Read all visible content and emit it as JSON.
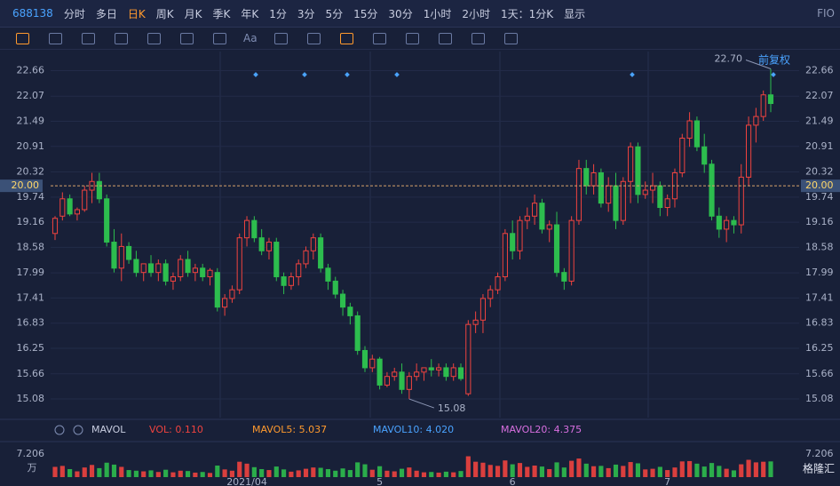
{
  "header": {
    "code": "688138",
    "tabs": [
      "分时",
      "多日",
      "日K",
      "周K",
      "月K",
      "季K",
      "年K",
      "1分",
      "3分",
      "5分",
      "15分",
      "30分",
      "1小时",
      "2小时",
      "1天：1分K",
      "显示"
    ],
    "active_tab": 2,
    "right": "FIO"
  },
  "toolbar": {
    "text_tool": "Aa",
    "adjust": "前复权"
  },
  "indicator": {
    "name": "MAVOL",
    "vol": "VOL: 0.110",
    "ma5": "MAVOL5: 5.037",
    "ma10": "MAVOL10: 4.020",
    "ma20": "MAVOL20: 4.375"
  },
  "logo": "格隆汇",
  "chart_data": {
    "type": "candlestick",
    "ylim": [
      14.65,
      23.1
    ],
    "yticks": [
      22.66,
      22.07,
      21.49,
      20.91,
      20.32,
      19.74,
      19.16,
      18.58,
      17.99,
      17.41,
      16.83,
      16.25,
      15.66,
      15.08
    ],
    "current": {
      "value": 20,
      "label": "20.00"
    },
    "high_label": {
      "value": 22.7,
      "label": "22.70"
    },
    "low_label": {
      "value": 15.08,
      "label": "15.08"
    },
    "vlim": [
      0,
      7.206
    ],
    "vticks": [
      7.206
    ],
    "vunit": "万",
    "up_color": "#f0433f",
    "down_color": "#2dbd4e",
    "candles": [
      {
        "o": 18.9,
        "h": 19.3,
        "l": 18.75,
        "c": 19.25,
        "v": 3.2
      },
      {
        "o": 19.3,
        "h": 19.85,
        "l": 19.2,
        "c": 19.7,
        "v": 3.5
      },
      {
        "o": 19.7,
        "h": 19.8,
        "l": 19.3,
        "c": 19.35,
        "v": 2.5
      },
      {
        "o": 19.35,
        "h": 19.5,
        "l": 19.2,
        "c": 19.45,
        "v": 1.8
      },
      {
        "o": 19.45,
        "h": 20.0,
        "l": 19.4,
        "c": 19.9,
        "v": 3.0
      },
      {
        "o": 19.9,
        "h": 20.3,
        "l": 19.6,
        "c": 20.1,
        "v": 3.8
      },
      {
        "o": 20.1,
        "h": 20.3,
        "l": 19.6,
        "c": 19.7,
        "v": 2.8
      },
      {
        "o": 19.7,
        "h": 19.8,
        "l": 18.6,
        "c": 18.7,
        "v": 4.5
      },
      {
        "o": 18.7,
        "h": 19.0,
        "l": 18.0,
        "c": 18.1,
        "v": 3.9
      },
      {
        "o": 18.1,
        "h": 18.9,
        "l": 17.8,
        "c": 18.6,
        "v": 3.2
      },
      {
        "o": 18.6,
        "h": 18.7,
        "l": 18.2,
        "c": 18.3,
        "v": 2.2
      },
      {
        "o": 18.3,
        "h": 18.5,
        "l": 17.9,
        "c": 18.0,
        "v": 2.0
      },
      {
        "o": 18.0,
        "h": 18.2,
        "l": 17.8,
        "c": 18.2,
        "v": 1.8
      },
      {
        "o": 18.2,
        "h": 18.4,
        "l": 17.9,
        "c": 18.0,
        "v": 2.1
      },
      {
        "o": 18.0,
        "h": 18.3,
        "l": 17.8,
        "c": 18.2,
        "v": 1.6
      },
      {
        "o": 18.2,
        "h": 18.3,
        "l": 17.7,
        "c": 17.8,
        "v": 2.3
      },
      {
        "o": 17.8,
        "h": 18.0,
        "l": 17.6,
        "c": 17.9,
        "v": 1.5
      },
      {
        "o": 17.9,
        "h": 18.4,
        "l": 17.8,
        "c": 18.3,
        "v": 2.0
      },
      {
        "o": 18.3,
        "h": 18.5,
        "l": 17.9,
        "c": 18.0,
        "v": 1.9
      },
      {
        "o": 18.0,
        "h": 18.2,
        "l": 17.8,
        "c": 18.1,
        "v": 1.4
      },
      {
        "o": 18.1,
        "h": 18.2,
        "l": 17.8,
        "c": 17.9,
        "v": 1.6
      },
      {
        "o": 17.9,
        "h": 18.1,
        "l": 17.7,
        "c": 18.05,
        "v": 1.3
      },
      {
        "o": 18.0,
        "h": 18.1,
        "l": 17.1,
        "c": 17.2,
        "v": 3.6
      },
      {
        "o": 17.2,
        "h": 17.5,
        "l": 17.0,
        "c": 17.4,
        "v": 2.4
      },
      {
        "o": 17.4,
        "h": 17.7,
        "l": 17.3,
        "c": 17.6,
        "v": 2.0
      },
      {
        "o": 17.6,
        "h": 18.9,
        "l": 17.5,
        "c": 18.8,
        "v": 4.8
      },
      {
        "o": 18.8,
        "h": 19.3,
        "l": 18.6,
        "c": 19.2,
        "v": 4.2,
        "d": "2021/04"
      },
      {
        "o": 19.2,
        "h": 19.3,
        "l": 18.7,
        "c": 18.8,
        "v": 3.1
      },
      {
        "o": 18.8,
        "h": 19.0,
        "l": 18.4,
        "c": 18.5,
        "v": 2.5
      },
      {
        "o": 18.5,
        "h": 18.8,
        "l": 18.3,
        "c": 18.7,
        "v": 2.2
      },
      {
        "o": 18.7,
        "h": 18.8,
        "l": 17.8,
        "c": 17.9,
        "v": 3.3
      },
      {
        "o": 17.9,
        "h": 18.0,
        "l": 17.5,
        "c": 17.7,
        "v": 2.4
      },
      {
        "o": 17.7,
        "h": 18.0,
        "l": 17.6,
        "c": 17.9,
        "v": 1.7
      },
      {
        "o": 17.9,
        "h": 18.3,
        "l": 17.7,
        "c": 18.2,
        "v": 2.1
      },
      {
        "o": 18.2,
        "h": 18.6,
        "l": 18.1,
        "c": 18.5,
        "v": 2.6
      },
      {
        "o": 18.5,
        "h": 18.9,
        "l": 18.3,
        "c": 18.8,
        "v": 3.0
      },
      {
        "o": 18.8,
        "h": 18.9,
        "l": 18.0,
        "c": 18.1,
        "v": 2.9
      },
      {
        "o": 18.1,
        "h": 18.2,
        "l": 17.6,
        "c": 17.8,
        "v": 2.5
      },
      {
        "o": 17.8,
        "h": 17.9,
        "l": 17.4,
        "c": 17.5,
        "v": 2.0
      },
      {
        "o": 17.5,
        "h": 17.6,
        "l": 17.0,
        "c": 17.2,
        "v": 2.7
      },
      {
        "o": 17.2,
        "h": 17.3,
        "l": 16.8,
        "c": 17.0,
        "v": 2.2
      },
      {
        "o": 17.0,
        "h": 17.1,
        "l": 16.1,
        "c": 16.2,
        "v": 4.6
      },
      {
        "o": 16.2,
        "h": 16.3,
        "l": 15.7,
        "c": 15.8,
        "v": 4.0
      },
      {
        "o": 15.8,
        "h": 16.1,
        "l": 15.7,
        "c": 16.0,
        "v": 2.3
      },
      {
        "o": 16.0,
        "h": 16.05,
        "l": 15.3,
        "c": 15.4,
        "v": 3.4,
        "d": "5"
      },
      {
        "o": 15.4,
        "h": 15.7,
        "l": 15.35,
        "c": 15.6,
        "v": 2.0
      },
      {
        "o": 15.6,
        "h": 15.8,
        "l": 15.5,
        "c": 15.7,
        "v": 1.8
      },
      {
        "o": 15.7,
        "h": 15.9,
        "l": 15.2,
        "c": 15.3,
        "v": 2.6
      },
      {
        "o": 15.3,
        "h": 15.7,
        "l": 15.08,
        "c": 15.6,
        "v": 3.0
      },
      {
        "o": 15.6,
        "h": 15.9,
        "l": 15.5,
        "c": 15.7,
        "v": 2.0
      },
      {
        "o": 15.7,
        "h": 15.8,
        "l": 15.5,
        "c": 15.8,
        "v": 1.5
      },
      {
        "o": 15.8,
        "h": 16.0,
        "l": 15.6,
        "c": 15.75,
        "v": 1.6
      },
      {
        "o": 15.75,
        "h": 15.9,
        "l": 15.6,
        "c": 15.8,
        "v": 1.4
      },
      {
        "o": 15.8,
        "h": 15.9,
        "l": 15.5,
        "c": 15.6,
        "v": 1.7
      },
      {
        "o": 15.6,
        "h": 15.9,
        "l": 15.5,
        "c": 15.8,
        "v": 1.5
      },
      {
        "o": 15.8,
        "h": 15.9,
        "l": 15.5,
        "c": 15.55,
        "v": 1.9
      },
      {
        "o": 15.2,
        "h": 16.9,
        "l": 15.15,
        "c": 16.8,
        "v": 6.5
      },
      {
        "o": 16.8,
        "h": 17.1,
        "l": 16.6,
        "c": 16.9,
        "v": 4.8
      },
      {
        "o": 16.9,
        "h": 17.5,
        "l": 16.6,
        "c": 17.4,
        "v": 4.5
      },
      {
        "o": 17.4,
        "h": 17.7,
        "l": 17.2,
        "c": 17.6,
        "v": 3.8
      },
      {
        "o": 17.6,
        "h": 18.0,
        "l": 17.5,
        "c": 17.9,
        "v": 3.5
      },
      {
        "o": 17.9,
        "h": 19.0,
        "l": 17.8,
        "c": 18.9,
        "v": 5.2
      },
      {
        "o": 18.9,
        "h": 19.2,
        "l": 18.3,
        "c": 18.5,
        "v": 4.0,
        "d": "6"
      },
      {
        "o": 18.5,
        "h": 19.3,
        "l": 18.3,
        "c": 19.2,
        "v": 4.4
      },
      {
        "o": 19.2,
        "h": 19.5,
        "l": 19.0,
        "c": 19.3,
        "v": 3.2
      },
      {
        "o": 19.3,
        "h": 19.8,
        "l": 19.1,
        "c": 19.6,
        "v": 3.6
      },
      {
        "o": 19.6,
        "h": 19.7,
        "l": 18.9,
        "c": 19.0,
        "v": 3.3
      },
      {
        "o": 19.0,
        "h": 19.2,
        "l": 18.7,
        "c": 19.1,
        "v": 2.5
      },
      {
        "o": 19.1,
        "h": 19.4,
        "l": 17.9,
        "c": 18.0,
        "v": 4.6
      },
      {
        "o": 18.0,
        "h": 18.1,
        "l": 17.6,
        "c": 17.8,
        "v": 3.0
      },
      {
        "o": 17.8,
        "h": 19.3,
        "l": 17.7,
        "c": 19.2,
        "v": 5.1
      },
      {
        "o": 19.2,
        "h": 20.6,
        "l": 19.1,
        "c": 20.4,
        "v": 5.8
      },
      {
        "o": 20.4,
        "h": 20.6,
        "l": 19.8,
        "c": 20.0,
        "v": 4.2
      },
      {
        "o": 20.0,
        "h": 20.5,
        "l": 19.8,
        "c": 20.3,
        "v": 3.4
      },
      {
        "o": 20.3,
        "h": 20.4,
        "l": 19.5,
        "c": 19.6,
        "v": 3.5
      },
      {
        "o": 19.6,
        "h": 20.2,
        "l": 19.4,
        "c": 20.0,
        "v": 2.8
      },
      {
        "o": 20.0,
        "h": 20.3,
        "l": 19.0,
        "c": 19.2,
        "v": 3.9
      },
      {
        "o": 19.2,
        "h": 20.2,
        "l": 19.1,
        "c": 20.1,
        "v": 3.5
      },
      {
        "o": 20.1,
        "h": 21.0,
        "l": 19.6,
        "c": 20.9,
        "v": 4.7
      },
      {
        "o": 20.9,
        "h": 21.0,
        "l": 19.6,
        "c": 19.8,
        "v": 4.3
      },
      {
        "o": 19.8,
        "h": 20.1,
        "l": 19.7,
        "c": 19.9,
        "v": 2.4
      },
      {
        "o": 19.9,
        "h": 20.3,
        "l": 19.6,
        "c": 20.0,
        "v": 2.6
      },
      {
        "o": 20.0,
        "h": 20.1,
        "l": 19.3,
        "c": 19.5,
        "v": 3.2
      },
      {
        "o": 19.5,
        "h": 19.8,
        "l": 19.3,
        "c": 19.7,
        "v": 2.2,
        "d": "7"
      },
      {
        "o": 19.7,
        "h": 20.4,
        "l": 19.5,
        "c": 20.3,
        "v": 3.0
      },
      {
        "o": 20.3,
        "h": 21.2,
        "l": 20.2,
        "c": 21.1,
        "v": 4.9
      },
      {
        "o": 21.1,
        "h": 21.7,
        "l": 20.9,
        "c": 21.5,
        "v": 5.0
      },
      {
        "o": 21.5,
        "h": 21.6,
        "l": 20.8,
        "c": 20.9,
        "v": 4.2
      },
      {
        "o": 20.9,
        "h": 21.2,
        "l": 20.3,
        "c": 20.5,
        "v": 3.3
      },
      {
        "o": 20.5,
        "h": 20.6,
        "l": 19.2,
        "c": 19.3,
        "v": 4.4
      },
      {
        "o": 19.3,
        "h": 19.5,
        "l": 18.8,
        "c": 19.0,
        "v": 3.5
      },
      {
        "o": 19.0,
        "h": 19.3,
        "l": 18.7,
        "c": 19.2,
        "v": 2.6
      },
      {
        "o": 19.2,
        "h": 19.3,
        "l": 18.9,
        "c": 19.1,
        "v": 2.1
      },
      {
        "o": 19.1,
        "h": 20.5,
        "l": 18.9,
        "c": 20.2,
        "v": 4.0
      },
      {
        "o": 20.2,
        "h": 21.6,
        "l": 20.0,
        "c": 21.4,
        "v": 5.4
      },
      {
        "o": 21.4,
        "h": 21.8,
        "l": 21.0,
        "c": 21.6,
        "v": 4.6
      },
      {
        "o": 21.6,
        "h": 22.2,
        "l": 21.5,
        "c": 22.1,
        "v": 4.8
      },
      {
        "o": 22.1,
        "h": 22.7,
        "l": 21.7,
        "c": 21.9,
        "v": 4.9
      }
    ]
  }
}
